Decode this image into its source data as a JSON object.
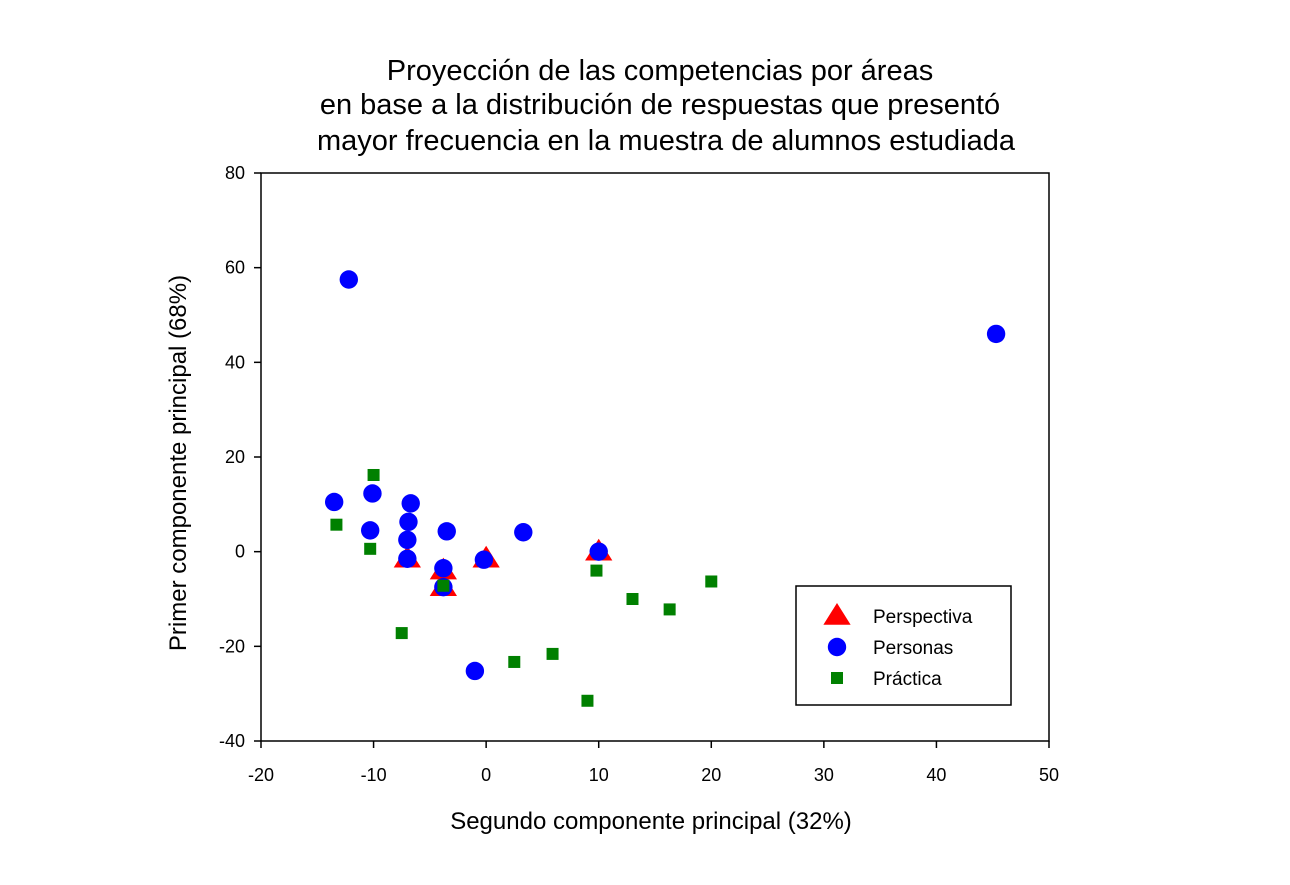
{
  "chart_data": {
    "type": "scatter",
    "title": [
      "Proyección de las competencias por áreas",
      "en base a la distribución de respuestas que presentó",
      "mayor frecuencia en la muestra de alumnos estudiada"
    ],
    "xlabel": "Segundo componente principal (32%)",
    "ylabel": "Primer componente principal (68%)",
    "xlim": [
      -20,
      50
    ],
    "ylim": [
      -40,
      80
    ],
    "xticks": [
      -20,
      -10,
      0,
      10,
      20,
      30,
      40,
      50
    ],
    "yticks": [
      -40,
      -20,
      0,
      20,
      40,
      60,
      80
    ],
    "xtick_labels": [
      "-20",
      "-10",
      "0",
      "10",
      "20",
      "30",
      "40",
      "50"
    ],
    "ytick_labels": [
      "-40",
      "-20",
      "0",
      "20",
      "40",
      "60",
      "80"
    ],
    "grid": false,
    "legend_position": "bottom-right",
    "series": [
      {
        "name": "Perspectiva",
        "marker": "triangle",
        "color": "#ff0000",
        "points": [
          [
            -7,
            -1.5
          ],
          [
            -3.8,
            -4
          ],
          [
            -3.8,
            -7.5
          ],
          [
            0,
            -1.5
          ],
          [
            10,
            0
          ]
        ]
      },
      {
        "name": "Personas",
        "marker": "circle",
        "color": "#0000ff",
        "points": [
          [
            -12.2,
            57.5
          ],
          [
            45.3,
            46
          ],
          [
            -13.5,
            10.5
          ],
          [
            -10.1,
            12.3
          ],
          [
            -10.3,
            4.5
          ],
          [
            -6.7,
            10.2
          ],
          [
            -6.9,
            6.3
          ],
          [
            -7,
            2.5
          ],
          [
            -7,
            -1.5
          ],
          [
            -3.5,
            4.3
          ],
          [
            -3.8,
            -3.5
          ],
          [
            -3.8,
            -7.5
          ],
          [
            -0.2,
            -1.7
          ],
          [
            3.3,
            4.1
          ],
          [
            10,
            0
          ],
          [
            -1,
            -25.2
          ]
        ]
      },
      {
        "name": "Práctica",
        "marker": "square",
        "color": "#008000",
        "points": [
          [
            -10,
            16.2
          ],
          [
            -13.3,
            5.7
          ],
          [
            -10.3,
            0.6
          ],
          [
            -7.5,
            -17.2
          ],
          [
            -3.8,
            -7.2
          ],
          [
            9.8,
            -4
          ],
          [
            13,
            -10
          ],
          [
            16.3,
            -12.2
          ],
          [
            20,
            -6.3
          ],
          [
            2.5,
            -23.3
          ],
          [
            5.9,
            -21.6
          ],
          [
            9,
            -31.5
          ]
        ]
      }
    ]
  }
}
